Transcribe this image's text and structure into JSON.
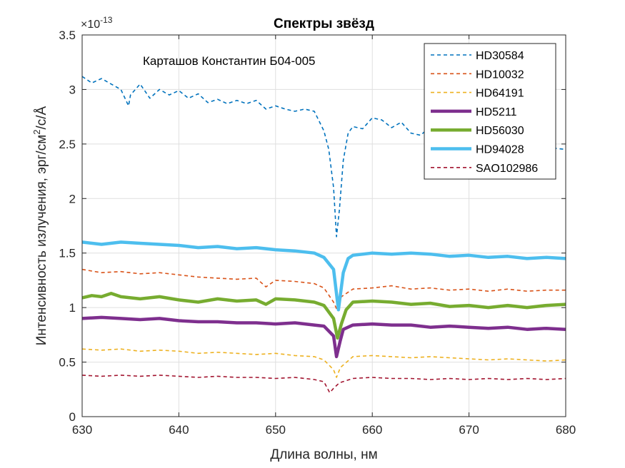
{
  "chart_data": {
    "type": "line",
    "title": "Спектры звёзд",
    "annotation": "Карташов Константин Б04-005",
    "xlabel": "Длина волны, нм",
    "ylabel": {
      "pre": "Интенсивность излучения, эрг/см",
      "sup": "2",
      "post": "/с/Å"
    },
    "y_exponent": {
      "base": "×10",
      "power": "-13"
    },
    "xlim": [
      630,
      680
    ],
    "ylim": [
      0,
      3.5
    ],
    "xticks": [
      630,
      640,
      650,
      660,
      670,
      680
    ],
    "yticks": [
      0,
      0.5,
      1,
      1.5,
      2,
      2.5,
      3,
      3.5
    ],
    "ytick_labels": [
      "0",
      "0.5",
      "1",
      "1.5",
      "2",
      "2.5",
      "3",
      "3.5"
    ],
    "grid": true,
    "legend_position": "top-right",
    "series": [
      {
        "name": "HD30584",
        "color": "#0072BD",
        "style": "dashed",
        "width": "thin",
        "points": [
          [
            630,
            3.12
          ],
          [
            631,
            3.06
          ],
          [
            632,
            3.1
          ],
          [
            633,
            3.05
          ],
          [
            634,
            3.0
          ],
          [
            634.8,
            2.85
          ],
          [
            635,
            2.95
          ],
          [
            636,
            3.05
          ],
          [
            637,
            2.92
          ],
          [
            638,
            3.0
          ],
          [
            639,
            2.95
          ],
          [
            640,
            2.99
          ],
          [
            641,
            2.92
          ],
          [
            642,
            2.96
          ],
          [
            643,
            2.88
          ],
          [
            644,
            2.91
          ],
          [
            645,
            2.87
          ],
          [
            646,
            2.9
          ],
          [
            647,
            2.87
          ],
          [
            648,
            2.9
          ],
          [
            649,
            2.82
          ],
          [
            650,
            2.85
          ],
          [
            651,
            2.82
          ],
          [
            652,
            2.8
          ],
          [
            653,
            2.82
          ],
          [
            654,
            2.8
          ],
          [
            655,
            2.62
          ],
          [
            655.5,
            2.45
          ],
          [
            656,
            2.1
          ],
          [
            656.3,
            1.65
          ],
          [
            656.6,
            1.9
          ],
          [
            657,
            2.35
          ],
          [
            657.5,
            2.6
          ],
          [
            658,
            2.66
          ],
          [
            659,
            2.64
          ],
          [
            660,
            2.74
          ],
          [
            661,
            2.72
          ],
          [
            662,
            2.65
          ],
          [
            663,
            2.7
          ],
          [
            664,
            2.6
          ],
          [
            665,
            2.58
          ],
          [
            666,
            2.66
          ],
          [
            667,
            2.6
          ],
          [
            668,
            2.58
          ],
          [
            669,
            2.55
          ],
          [
            670,
            2.56
          ],
          [
            671,
            2.54
          ],
          [
            672,
            2.5
          ],
          [
            673,
            2.52
          ],
          [
            674,
            2.48
          ],
          [
            675,
            2.5
          ],
          [
            676,
            2.46
          ],
          [
            677,
            2.48
          ],
          [
            678,
            2.5
          ],
          [
            679,
            2.46
          ],
          [
            680,
            2.45
          ]
        ]
      },
      {
        "name": "HD10032",
        "color": "#D95319",
        "style": "dashed",
        "width": "thin",
        "points": [
          [
            630,
            1.35
          ],
          [
            632,
            1.32
          ],
          [
            634,
            1.33
          ],
          [
            636,
            1.31
          ],
          [
            638,
            1.32
          ],
          [
            640,
            1.3
          ],
          [
            642,
            1.28
          ],
          [
            644,
            1.27
          ],
          [
            646,
            1.26
          ],
          [
            648,
            1.27
          ],
          [
            649,
            1.19
          ],
          [
            650,
            1.25
          ],
          [
            652,
            1.24
          ],
          [
            654,
            1.22
          ],
          [
            655,
            1.18
          ],
          [
            656,
            1.05
          ],
          [
            656.4,
            0.97
          ],
          [
            656.8,
            1.1
          ],
          [
            658,
            1.17
          ],
          [
            660,
            1.18
          ],
          [
            662,
            1.2
          ],
          [
            664,
            1.17
          ],
          [
            666,
            1.18
          ],
          [
            668,
            1.16
          ],
          [
            670,
            1.17
          ],
          [
            672,
            1.15
          ],
          [
            674,
            1.17
          ],
          [
            676,
            1.15
          ],
          [
            678,
            1.16
          ],
          [
            680,
            1.16
          ]
        ]
      },
      {
        "name": "HD64191",
        "color": "#EDB120",
        "style": "dashed",
        "width": "thin",
        "points": [
          [
            630,
            0.62
          ],
          [
            632,
            0.61
          ],
          [
            634,
            0.62
          ],
          [
            636,
            0.6
          ],
          [
            638,
            0.61
          ],
          [
            640,
            0.6
          ],
          [
            642,
            0.58
          ],
          [
            644,
            0.59
          ],
          [
            646,
            0.58
          ],
          [
            648,
            0.57
          ],
          [
            650,
            0.58
          ],
          [
            652,
            0.56
          ],
          [
            654,
            0.55
          ],
          [
            655,
            0.52
          ],
          [
            656,
            0.43
          ],
          [
            656.3,
            0.36
          ],
          [
            656.7,
            0.45
          ],
          [
            658,
            0.55
          ],
          [
            660,
            0.56
          ],
          [
            662,
            0.55
          ],
          [
            664,
            0.54
          ],
          [
            666,
            0.55
          ],
          [
            668,
            0.54
          ],
          [
            670,
            0.53
          ],
          [
            672,
            0.52
          ],
          [
            674,
            0.53
          ],
          [
            676,
            0.52
          ],
          [
            678,
            0.51
          ],
          [
            680,
            0.52
          ]
        ]
      },
      {
        "name": "HD5211",
        "color": "#7E2F8E",
        "style": "solid",
        "width": "thick",
        "points": [
          [
            630,
            0.9
          ],
          [
            632,
            0.91
          ],
          [
            634,
            0.9
          ],
          [
            636,
            0.89
          ],
          [
            638,
            0.9
          ],
          [
            640,
            0.88
          ],
          [
            642,
            0.87
          ],
          [
            644,
            0.87
          ],
          [
            646,
            0.86
          ],
          [
            648,
            0.86
          ],
          [
            650,
            0.85
          ],
          [
            652,
            0.86
          ],
          [
            654,
            0.84
          ],
          [
            655,
            0.83
          ],
          [
            656,
            0.74
          ],
          [
            656.3,
            0.55
          ],
          [
            656.7,
            0.7
          ],
          [
            657,
            0.8
          ],
          [
            658,
            0.84
          ],
          [
            660,
            0.85
          ],
          [
            662,
            0.84
          ],
          [
            664,
            0.84
          ],
          [
            666,
            0.82
          ],
          [
            668,
            0.83
          ],
          [
            670,
            0.82
          ],
          [
            672,
            0.81
          ],
          [
            674,
            0.82
          ],
          [
            676,
            0.8
          ],
          [
            678,
            0.81
          ],
          [
            680,
            0.8
          ]
        ]
      },
      {
        "name": "HD56030",
        "color": "#77AC30",
        "style": "solid",
        "width": "thick",
        "points": [
          [
            630,
            1.09
          ],
          [
            631,
            1.11
          ],
          [
            632,
            1.1
          ],
          [
            633,
            1.13
          ],
          [
            634,
            1.1
          ],
          [
            636,
            1.08
          ],
          [
            638,
            1.1
          ],
          [
            640,
            1.07
          ],
          [
            642,
            1.05
          ],
          [
            644,
            1.08
          ],
          [
            646,
            1.06
          ],
          [
            648,
            1.07
          ],
          [
            649,
            1.03
          ],
          [
            650,
            1.08
          ],
          [
            652,
            1.07
          ],
          [
            654,
            1.05
          ],
          [
            655,
            1.02
          ],
          [
            656,
            0.9
          ],
          [
            656.4,
            0.72
          ],
          [
            656.8,
            0.85
          ],
          [
            657.3,
            0.98
          ],
          [
            658,
            1.05
          ],
          [
            660,
            1.06
          ],
          [
            662,
            1.05
          ],
          [
            664,
            1.03
          ],
          [
            666,
            1.04
          ],
          [
            668,
            1.01
          ],
          [
            670,
            1.02
          ],
          [
            672,
            1.0
          ],
          [
            674,
            1.02
          ],
          [
            676,
            1.0
          ],
          [
            678,
            1.02
          ],
          [
            680,
            1.03
          ]
        ]
      },
      {
        "name": "HD94028",
        "color": "#4DBEEE",
        "style": "solid",
        "width": "thick",
        "points": [
          [
            630,
            1.6
          ],
          [
            632,
            1.58
          ],
          [
            634,
            1.6
          ],
          [
            636,
            1.59
          ],
          [
            638,
            1.58
          ],
          [
            640,
            1.57
          ],
          [
            642,
            1.55
          ],
          [
            644,
            1.56
          ],
          [
            646,
            1.54
          ],
          [
            648,
            1.55
          ],
          [
            650,
            1.53
          ],
          [
            652,
            1.52
          ],
          [
            654,
            1.5
          ],
          [
            655,
            1.46
          ],
          [
            656,
            1.35
          ],
          [
            656.5,
            0.98
          ],
          [
            657,
            1.32
          ],
          [
            657.5,
            1.45
          ],
          [
            658,
            1.48
          ],
          [
            660,
            1.5
          ],
          [
            662,
            1.49
          ],
          [
            664,
            1.5
          ],
          [
            666,
            1.49
          ],
          [
            668,
            1.47
          ],
          [
            670,
            1.48
          ],
          [
            672,
            1.46
          ],
          [
            674,
            1.47
          ],
          [
            676,
            1.45
          ],
          [
            678,
            1.46
          ],
          [
            680,
            1.45
          ]
        ]
      },
      {
        "name": "SAO102986",
        "color": "#A2142F",
        "style": "dashed",
        "width": "thin",
        "points": [
          [
            630,
            0.38
          ],
          [
            632,
            0.37
          ],
          [
            634,
            0.38
          ],
          [
            636,
            0.37
          ],
          [
            638,
            0.38
          ],
          [
            640,
            0.37
          ],
          [
            642,
            0.36
          ],
          [
            644,
            0.37
          ],
          [
            646,
            0.36
          ],
          [
            648,
            0.36
          ],
          [
            650,
            0.35
          ],
          [
            652,
            0.36
          ],
          [
            654,
            0.34
          ],
          [
            655,
            0.32
          ],
          [
            655.6,
            0.22
          ],
          [
            656,
            0.26
          ],
          [
            656.6,
            0.31
          ],
          [
            658,
            0.35
          ],
          [
            660,
            0.36
          ],
          [
            662,
            0.35
          ],
          [
            664,
            0.35
          ],
          [
            666,
            0.34
          ],
          [
            668,
            0.35
          ],
          [
            670,
            0.34
          ],
          [
            672,
            0.35
          ],
          [
            674,
            0.34
          ],
          [
            676,
            0.35
          ],
          [
            678,
            0.34
          ],
          [
            680,
            0.35
          ]
        ]
      }
    ]
  }
}
